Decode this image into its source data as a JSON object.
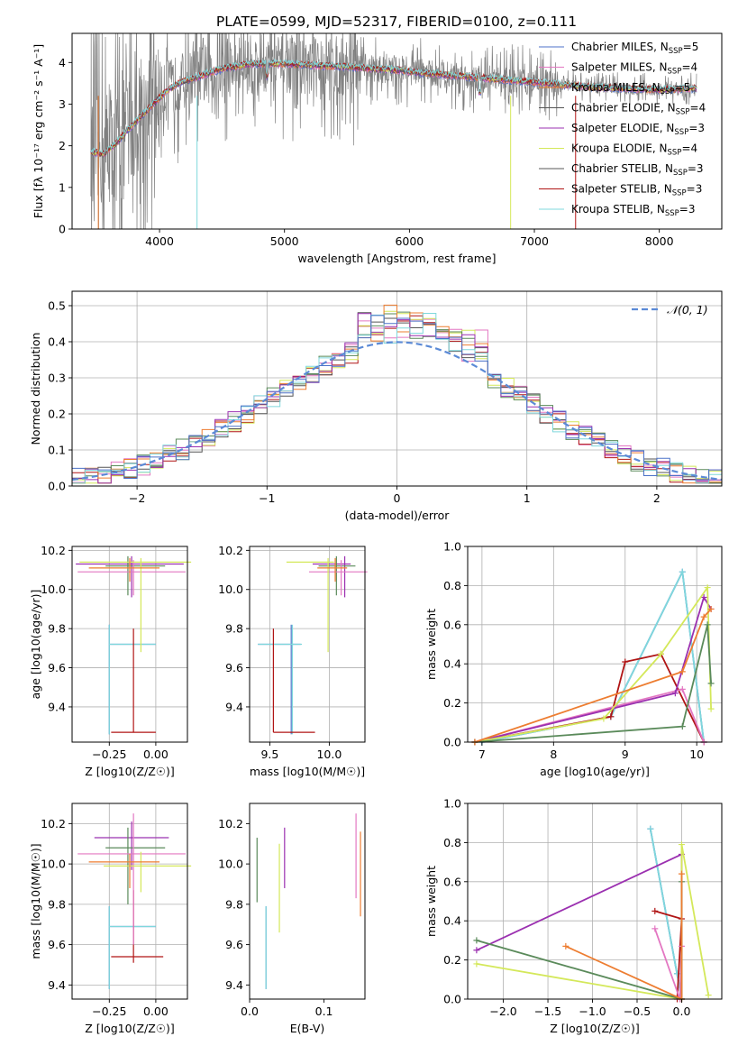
{
  "figure": {
    "title": "PLATE=0599, MJD=52317, FIBERID=0100, z=0.111"
  },
  "colors": {
    "chabrier_miles": "#4c72c8",
    "salpeter_miles": "#e377c2",
    "kroupa_miles": "#ed7d31",
    "chabrier_elodie": "#555555",
    "salpeter_elodie": "#9b30b0",
    "kroupa_elodie": "#d4e85a",
    "chabrier_stelib": "#5a5a5a",
    "salpeter_stelib": "#b01515",
    "kroupa_stelib": "#7fd8dc",
    "data_spectrum": "#808080",
    "normal_curve": "#5b8ad6",
    "green_model": "#5a8a5a"
  },
  "chart_data": [
    {
      "id": "spectrum",
      "type": "line",
      "xlabel": "wavelength [Angstrom, rest frame]",
      "ylabel": "Flux [fλ 10⁻¹⁷ erg cm⁻² s⁻¹ A⁻¹]",
      "xlim": [
        3300,
        8500
      ],
      "ylim": [
        0,
        4.7
      ],
      "xticks": [
        4000,
        5000,
        6000,
        7000,
        8000
      ],
      "yticks": [
        0,
        1,
        2,
        3,
        4
      ],
      "grid": false,
      "legend_position": "upper-right",
      "legend": [
        {
          "label": "Chabrier MILES, N",
          "sub": "SSP",
          "suffix": "=5",
          "color": "#4c72c8"
        },
        {
          "label": "Salpeter MILES, N",
          "sub": "SSP",
          "suffix": "=4",
          "color": "#e377c2"
        },
        {
          "label": "Kroupa MILES, N",
          "sub": "SSP",
          "suffix": "=5",
          "color": "#ed7d31"
        },
        {
          "label": "Chabrier ELODIE, N",
          "sub": "SSP",
          "suffix": "=4",
          "color": "#555555"
        },
        {
          "label": "Salpeter ELODIE, N",
          "sub": "SSP",
          "suffix": "=3",
          "color": "#9b30b0"
        },
        {
          "label": "Kroupa ELODIE, N",
          "sub": "SSP",
          "suffix": "=4",
          "color": "#d4e85a"
        },
        {
          "label": "Chabrier STELIB, N",
          "sub": "SSP",
          "suffix": "=3",
          "color": "#5a5a5a"
        },
        {
          "label": "Salpeter STELIB, N",
          "sub": "SSP",
          "suffix": "=3",
          "color": "#b01515"
        },
        {
          "label": "Kroupa STELIB, N",
          "sub": "SSP",
          "suffix": "=3",
          "color": "#7fd8dc"
        }
      ],
      "continuum": [
        [
          3450,
          1.85
        ],
        [
          3550,
          1.8
        ],
        [
          3650,
          2.05
        ],
        [
          3750,
          2.4
        ],
        [
          3850,
          2.7
        ],
        [
          3950,
          3.0
        ],
        [
          4050,
          3.3
        ],
        [
          4150,
          3.5
        ],
        [
          4300,
          3.65
        ],
        [
          4500,
          3.85
        ],
        [
          4700,
          3.95
        ],
        [
          4900,
          3.98
        ],
        [
          5100,
          3.95
        ],
        [
          5300,
          3.92
        ],
        [
          5500,
          3.9
        ],
        [
          5700,
          3.85
        ],
        [
          5900,
          3.82
        ],
        [
          6100,
          3.75
        ],
        [
          6300,
          3.7
        ],
        [
          6500,
          3.65
        ],
        [
          6700,
          3.6
        ],
        [
          6900,
          3.55
        ],
        [
          7100,
          3.5
        ],
        [
          7300,
          3.45
        ],
        [
          7500,
          3.4
        ],
        [
          7700,
          3.38
        ],
        [
          7900,
          3.35
        ],
        [
          8100,
          3.35
        ],
        [
          8300,
          3.38
        ]
      ]
    },
    {
      "id": "residuals",
      "type": "histogram",
      "xlabel": "(data-model)/error",
      "ylabel": "Normed distribution",
      "xlim": [
        -2.5,
        2.5
      ],
      "ylim": [
        0,
        0.54
      ],
      "xticks": [
        -2,
        -1,
        0,
        1,
        2
      ],
      "yticks": [
        0.0,
        0.1,
        0.2,
        0.3,
        0.4,
        0.5
      ],
      "grid": true,
      "legend_position": "upper-right",
      "legend": [
        {
          "label": "𝒩(0, 1)",
          "color": "#5b8ad6",
          "style": "dashed"
        }
      ],
      "bins": {
        "start": -2.5,
        "width": 0.1,
        "count": 50
      }
    },
    {
      "id": "age_vs_z",
      "type": "errorbar",
      "xlabel": "Z [log10(Z/Z☉)]",
      "ylabel": "age  [log10(age/yr)]",
      "xlim": [
        -0.45,
        0.17
      ],
      "ylim": [
        9.22,
        10.22
      ],
      "xticks": [
        -0.25,
        0.0
      ],
      "yticks": [
        9.4,
        9.6,
        9.8,
        10.0,
        10.2
      ],
      "grid": true,
      "points": [
        {
          "x": -0.25,
          "y": 9.72,
          "xerr": [
            0.0,
            0.25
          ],
          "yerr": [
            0.46,
            0.1
          ],
          "color": "#4c72c8"
        },
        {
          "x": -0.25,
          "y": 9.72,
          "xerr": [
            0.0,
            0.25
          ],
          "yerr": [
            0.46,
            0.1
          ],
          "color": "#7fd8dc"
        },
        {
          "x": -0.12,
          "y": 9.27,
          "xerr": [
            0.12,
            0.12
          ],
          "yerr": [
            0.0,
            0.53
          ],
          "color": "#b01515"
        },
        {
          "x": -0.13,
          "y": 10.13,
          "xerr": [
            0.3,
            0.28
          ],
          "yerr": [
            0.17,
            0.04
          ],
          "color": "#9b30b0"
        },
        {
          "x": -0.15,
          "y": 10.12,
          "xerr": [
            0.12,
            0.2
          ],
          "yerr": [
            0.15,
            0.05
          ],
          "color": "#5a8a5a"
        },
        {
          "x": -0.12,
          "y": 10.09,
          "xerr": [
            0.3,
            0.28
          ],
          "yerr": [
            0.12,
            0.06
          ],
          "color": "#e377c2"
        },
        {
          "x": -0.08,
          "y": 10.14,
          "xerr": [
            0.33,
            0.27
          ],
          "yerr": [
            0.46,
            0.02
          ],
          "color": "#d4e85a"
        },
        {
          "x": -0.14,
          "y": 10.11,
          "xerr": [
            0.22,
            0.16
          ],
          "yerr": [
            0.07,
            0.05
          ],
          "color": "#ed7d31"
        }
      ]
    },
    {
      "id": "age_vs_mass",
      "type": "errorbar",
      "xlabel": "mass [log10(M/M☉)]",
      "ylabel": "",
      "xlim": [
        9.33,
        10.3
      ],
      "ylim": [
        9.22,
        10.22
      ],
      "xticks": [
        9.5,
        10.0
      ],
      "yticks": [
        9.4,
        9.6,
        9.8,
        10.0,
        10.2
      ],
      "grid": true,
      "points": [
        {
          "x": 9.68,
          "y": 9.72,
          "xerr": [
            0.28,
            0.08
          ],
          "yerr": [
            0.46,
            0.1
          ],
          "color": "#4c72c8"
        },
        {
          "x": 9.69,
          "y": 9.72,
          "xerr": [
            0.29,
            0.08
          ],
          "yerr": [
            0.46,
            0.1
          ],
          "color": "#7fd8dc"
        },
        {
          "x": 9.53,
          "y": 9.27,
          "xerr": [
            0.0,
            0.35
          ],
          "yerr": [
            0.0,
            0.53
          ],
          "color": "#b01515"
        },
        {
          "x": 10.13,
          "y": 10.13,
          "xerr": [
            0.27,
            0.05
          ],
          "yerr": [
            0.17,
            0.04
          ],
          "color": "#9b30b0"
        },
        {
          "x": 10.06,
          "y": 10.12,
          "xerr": [
            0.15,
            0.16
          ],
          "yerr": [
            0.15,
            0.05
          ],
          "color": "#5a8a5a"
        },
        {
          "x": 10.1,
          "y": 10.09,
          "xerr": [
            0.27,
            0.22
          ],
          "yerr": [
            0.12,
            0.06
          ],
          "color": "#e377c2"
        },
        {
          "x": 9.99,
          "y": 10.14,
          "xerr": [
            0.35,
            0.05
          ],
          "yerr": [
            0.46,
            0.02
          ],
          "color": "#d4e85a"
        },
        {
          "x": 10.05,
          "y": 10.11,
          "xerr": [
            0.15,
            0.1
          ],
          "yerr": [
            0.07,
            0.05
          ],
          "color": "#ed7d31"
        }
      ]
    },
    {
      "id": "weight_vs_age",
      "type": "line",
      "xlabel": "age  [log10(age/yr)]",
      "ylabel": "mass weight",
      "xlim": [
        6.8,
        10.35
      ],
      "ylim": [
        0.0,
        1.0
      ],
      "xticks": [
        7,
        8,
        9,
        10
      ],
      "yticks": [
        0.0,
        0.2,
        0.4,
        0.6,
        0.8,
        1.0
      ],
      "grid": true,
      "series": [
        {
          "x": [
            7.0,
            8.8,
            9.8,
            10.1
          ],
          "y": [
            0.0,
            0.13,
            0.87,
            0.0
          ],
          "color": "#4c72c8"
        },
        {
          "x": [
            7.0,
            8.8,
            9.8,
            10.1
          ],
          "y": [
            0.0,
            0.13,
            0.87,
            0.0
          ],
          "color": "#7fd8dc"
        },
        {
          "x": [
            6.9,
            8.8,
            9.0,
            9.5,
            10.1
          ],
          "y": [
            0.0,
            0.13,
            0.41,
            0.45,
            0.0
          ],
          "color": "#b01515"
        },
        {
          "x": [
            6.9,
            9.8,
            10.1
          ],
          "y": [
            0.0,
            0.27,
            0.0
          ],
          "color": "#e377c2"
        },
        {
          "x": [
            6.9,
            9.7,
            10.1,
            10.2
          ],
          "y": [
            0.0,
            0.25,
            0.74,
            0.68
          ],
          "color": "#9b30b0"
        },
        {
          "x": [
            6.9,
            8.7,
            9.5,
            10.15,
            10.2
          ],
          "y": [
            0.0,
            0.12,
            0.45,
            0.79,
            0.17
          ],
          "color": "#d4e85a"
        },
        {
          "x": [
            6.9,
            9.8,
            10.15,
            10.2
          ],
          "y": [
            0.0,
            0.08,
            0.6,
            0.3
          ],
          "color": "#5a8a5a"
        },
        {
          "x": [
            6.9,
            9.8,
            10.1,
            10.2
          ],
          "y": [
            0.0,
            0.36,
            0.64,
            0.68
          ],
          "color": "#ed7d31"
        }
      ]
    },
    {
      "id": "mass_vs_z",
      "type": "errorbar",
      "xlabel": "Z [log10(Z/Z☉)]",
      "ylabel": "mass [log10(M/M☉)]",
      "xlim": [
        -0.45,
        0.17
      ],
      "ylim": [
        9.33,
        10.3
      ],
      "xticks": [
        -0.25,
        0.0
      ],
      "yticks": [
        9.4,
        9.6,
        9.8,
        10.0,
        10.2
      ],
      "grid": true,
      "points": [
        {
          "x": -0.25,
          "y": 9.69,
          "xerr": [
            0.0,
            0.25
          ],
          "yerr": [
            0.31,
            0.1
          ],
          "color": "#4c72c8"
        },
        {
          "x": -0.25,
          "y": 9.69,
          "xerr": [
            0.0,
            0.25
          ],
          "yerr": [
            0.31,
            0.1
          ],
          "color": "#7fd8dc"
        },
        {
          "x": -0.12,
          "y": 9.54,
          "xerr": [
            0.12,
            0.16
          ],
          "yerr": [
            0.03,
            0.33
          ],
          "color": "#b01515"
        },
        {
          "x": -0.13,
          "y": 10.13,
          "xerr": [
            0.2,
            0.2
          ],
          "yerr": [
            0.16,
            0.08
          ],
          "color": "#9b30b0"
        },
        {
          "x": -0.15,
          "y": 10.08,
          "xerr": [
            0.12,
            0.2
          ],
          "yerr": [
            0.28,
            0.1
          ],
          "color": "#5a8a5a"
        },
        {
          "x": -0.12,
          "y": 10.05,
          "xerr": [
            0.3,
            0.28
          ],
          "yerr": [
            0.45,
            0.2
          ],
          "color": "#e377c2"
        },
        {
          "x": -0.08,
          "y": 9.99,
          "xerr": [
            0.2,
            0.27
          ],
          "yerr": [
            0.13,
            0.07
          ],
          "color": "#d4e85a"
        },
        {
          "x": -0.14,
          "y": 10.01,
          "xerr": [
            0.22,
            0.16
          ],
          "yerr": [
            0.13,
            0.04
          ],
          "color": "#ed7d31"
        }
      ]
    },
    {
      "id": "mass_vs_ebv",
      "type": "errorbar",
      "xlabel": "E(B-V)",
      "ylabel": "",
      "xlim": [
        0.0,
        0.155
      ],
      "ylim": [
        9.33,
        10.3
      ],
      "xticks": [
        0.0,
        0.1
      ],
      "yticks": [
        9.4,
        9.6,
        9.8,
        10.0,
        10.2
      ],
      "grid": false,
      "points": [
        {
          "x": 0.022,
          "y": 9.69,
          "xerr": [
            0,
            0
          ],
          "yerr": [
            0.31,
            0.1
          ],
          "color": "#4c72c8"
        },
        {
          "x": 0.022,
          "y": 9.69,
          "xerr": [
            0,
            0
          ],
          "yerr": [
            0.31,
            0.1
          ],
          "color": "#7fd8dc"
        },
        {
          "x": 0.01,
          "y": 9.97,
          "xerr": [
            0,
            0
          ],
          "yerr": [
            0.16,
            0.16
          ],
          "color": "#5a8a5a"
        },
        {
          "x": 0.04,
          "y": 9.88,
          "xerr": [
            0,
            0
          ],
          "yerr": [
            0.22,
            0.22
          ],
          "color": "#d4e85a"
        },
        {
          "x": 0.047,
          "y": 10.03,
          "xerr": [
            0,
            0
          ],
          "yerr": [
            0.15,
            0.15
          ],
          "color": "#9b30b0"
        },
        {
          "x": 0.143,
          "y": 10.04,
          "xerr": [
            0,
            0
          ],
          "yerr": [
            0.21,
            0.21
          ],
          "color": "#e377c2"
        },
        {
          "x": 0.149,
          "y": 9.95,
          "xerr": [
            0,
            0
          ],
          "yerr": [
            0.21,
            0.21
          ],
          "color": "#ed7d31"
        }
      ]
    },
    {
      "id": "weight_vs_z",
      "type": "line",
      "xlabel": "Z [log10(Z/Z☉)]",
      "ylabel": "mass weight",
      "xlim": [
        -2.4,
        0.45
      ],
      "ylim": [
        0.0,
        1.0
      ],
      "xticks": [
        -2.0,
        -1.5,
        -1.0,
        -0.5,
        0.0
      ],
      "yticks": [
        0.0,
        0.2,
        0.4,
        0.6,
        0.8,
        1.0
      ],
      "grid": true,
      "series": [
        {
          "x": [
            -0.35,
            0.0,
            -0.05
          ],
          "y": [
            0.87,
            0.0,
            0.13
          ],
          "color": "#4c72c8"
        },
        {
          "x": [
            -0.35,
            0.0,
            -0.05
          ],
          "y": [
            0.87,
            0.0,
            0.13
          ],
          "color": "#7fd8dc"
        },
        {
          "x": [
            -0.3,
            0.0,
            -0.05
          ],
          "y": [
            0.45,
            0.41,
            0.0
          ],
          "color": "#b01515"
        },
        {
          "x": [
            -0.3,
            -0.02,
            0.0
          ],
          "y": [
            0.36,
            0.0,
            0.27
          ],
          "color": "#e377c2"
        },
        {
          "x": [
            -2.3,
            0.0,
            0.0
          ],
          "y": [
            0.25,
            0.74,
            0.0
          ],
          "color": "#9b30b0"
        },
        {
          "x": [
            -2.3,
            0.0,
            0.0,
            0.3
          ],
          "y": [
            0.18,
            0.0,
            0.79,
            0.02
          ],
          "color": "#d4e85a"
        },
        {
          "x": [
            -2.3,
            0.0,
            0.0
          ],
          "y": [
            0.3,
            0.0,
            0.6
          ],
          "color": "#5a8a5a"
        },
        {
          "x": [
            -1.3,
            0.0,
            0.0
          ],
          "y": [
            0.27,
            0.0,
            0.64
          ],
          "color": "#ed7d31"
        }
      ]
    }
  ]
}
